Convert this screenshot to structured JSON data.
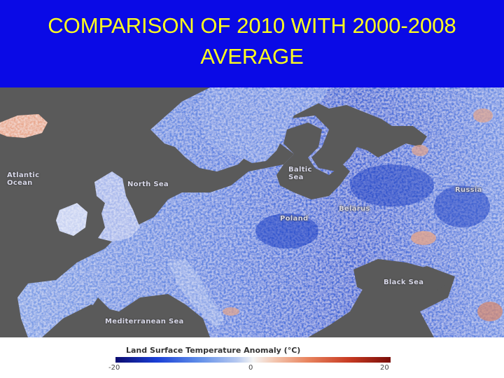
{
  "title": "COMPARISON OF 2010 WITH 2000-2008 AVERAGE",
  "map_labels": {
    "atlantic": "Atlantic\nOcean",
    "north_sea": "North Sea",
    "baltic": "Baltic\nSea",
    "belarus": "Belarus",
    "poland": "Poland",
    "russia": "Russia",
    "black_sea": "Black Sea",
    "mediterranean": "Mediterranean Sea"
  },
  "legend": {
    "title": "Land Surface Temperature Anomaly (°C)",
    "min_label": "-20",
    "mid_label": "0",
    "max_label": "20"
  },
  "colors": {
    "title_bg": "#0a0ae6",
    "title_text": "#ffff1e",
    "water": "#5a5a5a",
    "cold": "#1a3fd6",
    "warm": "#c73a22"
  }
}
